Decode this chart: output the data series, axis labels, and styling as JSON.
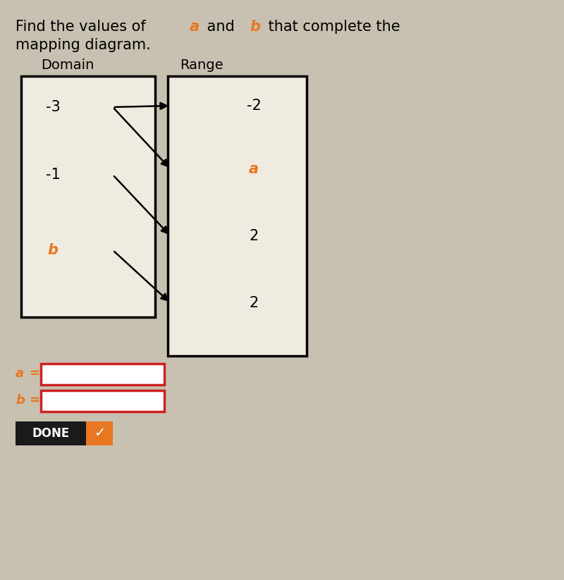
{
  "title_line1_parts": [
    [
      "Find the values of ",
      "black"
    ],
    [
      "a",
      "#E87722"
    ],
    [
      " and ",
      "black"
    ],
    [
      "b",
      "#E87722"
    ],
    [
      " that complete the",
      "black"
    ]
  ],
  "title_line2": "mapping diagram.",
  "domain_label": "Domain",
  "range_label": "Range",
  "domain_values": [
    "-3",
    "-1",
    "b"
  ],
  "domain_colors": [
    "black",
    "black",
    "#E87722"
  ],
  "domain_italic": [
    false,
    false,
    true
  ],
  "range_values": [
    "-2",
    "a",
    "2",
    "2"
  ],
  "range_colors": [
    "black",
    "#E87722",
    "black",
    "black"
  ],
  "range_italic": [
    false,
    true,
    false,
    false
  ],
  "box_bg": "#F0EBE0",
  "arrow_color": "black",
  "input_box_border": "#CC2222",
  "input_box_fill": "white",
  "done_bg_left": "#1A1A1A",
  "done_bg_right": "#E87722",
  "done_text": "DONE",
  "background_color": "#C8C0B0",
  "arrows": [
    [
      0,
      0
    ],
    [
      0,
      1
    ],
    [
      1,
      2
    ],
    [
      2,
      3
    ]
  ],
  "figsize": [
    8.0,
    8.23
  ],
  "title_fontsize": 15,
  "label_fontsize": 14,
  "value_fontsize": 14
}
